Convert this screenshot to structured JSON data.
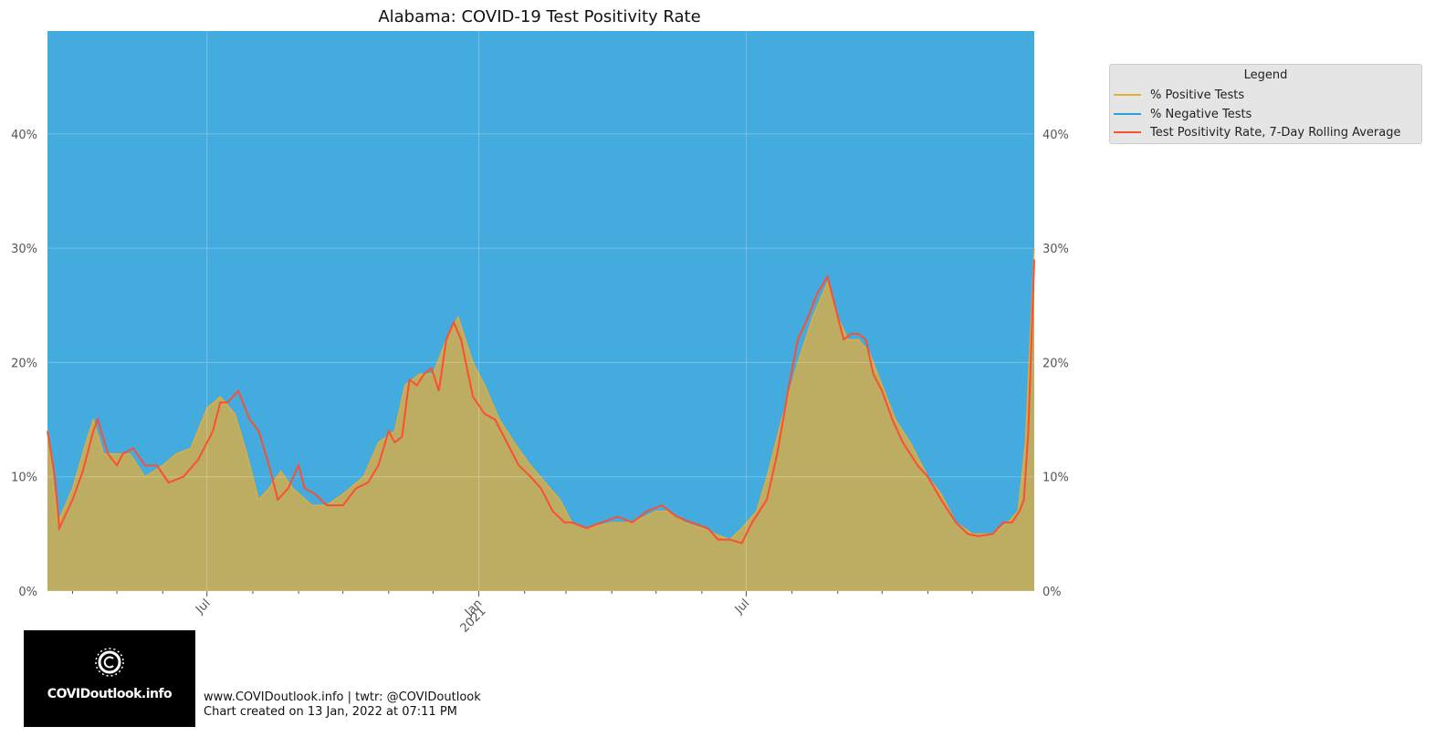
{
  "legend": {
    "title": "Legend",
    "items": [
      {
        "label": "% Positive Tests",
        "color": "#e5ae38"
      },
      {
        "label": "% Negative Tests",
        "color": "#30a2da"
      },
      {
        "label": "Test Positivity Rate, 7-Day Rolling Average",
        "color": "#fc4f30"
      }
    ]
  },
  "footer": {
    "logo_text": "COVIDoutlook.info",
    "line1": "www.COVIDoutlook.info | twtr: @COVIDoutlook",
    "line2": "Chart created on 13 Jan, 2022 at 07:11 PM"
  },
  "chart_data": {
    "type": "area",
    "title": "Alabama: COVID-19 Test Positivity Rate",
    "xlabel": "",
    "ylabel": "",
    "x_range": [
      "2020-03-15",
      "2022-01-12"
    ],
    "ylim": [
      0,
      49
    ],
    "y_ticks": [
      0,
      10,
      20,
      30,
      40
    ],
    "y_tick_labels": [
      "0%",
      "10%",
      "20%",
      "30%",
      "40%"
    ],
    "x_major_ticks": [
      {
        "date": "2020-07-01",
        "label": "Jul"
      },
      {
        "date": "2021-01-01",
        "label": "Jan\n2021"
      },
      {
        "date": "2021-07-01",
        "label": "Jul"
      }
    ],
    "x_minor_ticks": [
      "2020-04-01",
      "2020-05-01",
      "2020-06-01",
      "2020-08-01",
      "2020-09-01",
      "2020-10-01",
      "2020-11-01",
      "2020-12-01",
      "2021-02-01",
      "2021-03-01",
      "2021-04-01",
      "2021-05-01",
      "2021-06-01",
      "2021-08-01",
      "2021-09-01",
      "2021-10-01",
      "2021-11-01",
      "2021-12-01"
    ],
    "grid": true,
    "legend_position": "right",
    "series": [
      {
        "name": "% Positive Tests",
        "color": "#e5ae38",
        "points": [
          [
            "2020-03-15",
            14
          ],
          [
            "2020-03-22",
            6
          ],
          [
            "2020-04-01",
            9
          ],
          [
            "2020-04-10",
            13
          ],
          [
            "2020-04-15",
            15
          ],
          [
            "2020-04-22",
            12
          ],
          [
            "2020-05-01",
            12
          ],
          [
            "2020-05-10",
            12
          ],
          [
            "2020-05-20",
            10
          ],
          [
            "2020-06-01",
            11
          ],
          [
            "2020-06-10",
            12
          ],
          [
            "2020-06-20",
            12.5
          ],
          [
            "2020-07-01",
            16
          ],
          [
            "2020-07-10",
            17
          ],
          [
            "2020-07-20",
            15.5
          ],
          [
            "2020-07-28",
            12
          ],
          [
            "2020-08-05",
            8
          ],
          [
            "2020-08-12",
            9
          ],
          [
            "2020-08-20",
            10.5
          ],
          [
            "2020-08-28",
            9
          ],
          [
            "2020-09-10",
            7.5
          ],
          [
            "2020-09-20",
            7.5
          ],
          [
            "2020-10-01",
            8.5
          ],
          [
            "2020-10-15",
            10
          ],
          [
            "2020-10-25",
            13
          ],
          [
            "2020-11-05",
            14
          ],
          [
            "2020-11-12",
            18
          ],
          [
            "2020-11-22",
            19
          ],
          [
            "2020-12-01",
            19
          ],
          [
            "2020-12-10",
            22
          ],
          [
            "2020-12-18",
            24
          ],
          [
            "2020-12-28",
            20
          ],
          [
            "2021-01-05",
            18
          ],
          [
            "2021-01-15",
            15
          ],
          [
            "2021-01-25",
            13
          ],
          [
            "2021-02-05",
            11
          ],
          [
            "2021-02-15",
            9.5
          ],
          [
            "2021-02-25",
            8
          ],
          [
            "2021-03-05",
            6
          ],
          [
            "2021-03-15",
            5.5
          ],
          [
            "2021-04-01",
            6
          ],
          [
            "2021-04-15",
            6
          ],
          [
            "2021-05-01",
            7
          ],
          [
            "2021-05-10",
            7
          ],
          [
            "2021-05-20",
            6
          ],
          [
            "2021-06-01",
            5.5
          ],
          [
            "2021-06-10",
            5
          ],
          [
            "2021-06-20",
            4.5
          ],
          [
            "2021-06-28",
            5.5
          ],
          [
            "2021-07-08",
            7
          ],
          [
            "2021-07-15",
            10
          ],
          [
            "2021-07-25",
            15
          ],
          [
            "2021-08-05",
            20
          ],
          [
            "2021-08-15",
            24
          ],
          [
            "2021-08-25",
            27
          ],
          [
            "2021-09-01",
            24
          ],
          [
            "2021-09-08",
            22
          ],
          [
            "2021-09-15",
            22
          ],
          [
            "2021-09-22",
            21
          ],
          [
            "2021-10-01",
            18
          ],
          [
            "2021-10-10",
            15
          ],
          [
            "2021-10-20",
            13
          ],
          [
            "2021-11-01",
            10
          ],
          [
            "2021-11-10",
            8.5
          ],
          [
            "2021-11-20",
            6
          ],
          [
            "2021-12-01",
            5
          ],
          [
            "2021-12-15",
            5
          ],
          [
            "2021-12-25",
            6
          ],
          [
            "2022-01-01",
            7
          ],
          [
            "2022-01-06",
            13
          ],
          [
            "2022-01-12",
            30
          ]
        ]
      },
      {
        "name": "% Negative Tests",
        "color": "#30a2da",
        "fill": "remainder to 100%"
      },
      {
        "name": "Test Positivity Rate, 7-Day Rolling Average",
        "color": "#fc4f30",
        "points": [
          [
            "2020-03-15",
            14
          ],
          [
            "2020-03-20",
            10
          ],
          [
            "2020-03-23",
            5.5
          ],
          [
            "2020-04-01",
            8
          ],
          [
            "2020-04-08",
            10.5
          ],
          [
            "2020-04-15",
            14
          ],
          [
            "2020-04-18",
            15
          ],
          [
            "2020-04-25",
            12
          ],
          [
            "2020-05-01",
            11
          ],
          [
            "2020-05-05",
            12
          ],
          [
            "2020-05-12",
            12.5
          ],
          [
            "2020-05-20",
            11
          ],
          [
            "2020-05-28",
            11
          ],
          [
            "2020-06-05",
            9.5
          ],
          [
            "2020-06-15",
            10
          ],
          [
            "2020-06-25",
            11.5
          ],
          [
            "2020-07-01",
            13
          ],
          [
            "2020-07-05",
            14
          ],
          [
            "2020-07-10",
            16.5
          ],
          [
            "2020-07-15",
            16.5
          ],
          [
            "2020-07-22",
            17.5
          ],
          [
            "2020-07-30",
            15
          ],
          [
            "2020-08-05",
            14
          ],
          [
            "2020-08-12",
            11
          ],
          [
            "2020-08-18",
            8
          ],
          [
            "2020-08-25",
            9
          ],
          [
            "2020-09-01",
            11
          ],
          [
            "2020-09-05",
            9
          ],
          [
            "2020-09-12",
            8.5
          ],
          [
            "2020-09-20",
            7.5
          ],
          [
            "2020-10-01",
            7.5
          ],
          [
            "2020-10-10",
            9
          ],
          [
            "2020-10-18",
            9.5
          ],
          [
            "2020-10-25",
            11
          ],
          [
            "2020-11-01",
            14
          ],
          [
            "2020-11-05",
            13
          ],
          [
            "2020-11-10",
            13.5
          ],
          [
            "2020-11-15",
            18.5
          ],
          [
            "2020-11-20",
            18
          ],
          [
            "2020-11-25",
            19
          ],
          [
            "2020-11-30",
            19.5
          ],
          [
            "2020-12-05",
            17.5
          ],
          [
            "2020-12-10",
            22
          ],
          [
            "2020-12-15",
            23.5
          ],
          [
            "2020-12-20",
            22
          ],
          [
            "2020-12-28",
            17
          ],
          [
            "2021-01-05",
            15.5
          ],
          [
            "2021-01-12",
            15
          ],
          [
            "2021-01-20",
            13
          ],
          [
            "2021-01-28",
            11
          ],
          [
            "2021-02-05",
            10
          ],
          [
            "2021-02-12",
            9
          ],
          [
            "2021-02-20",
            7
          ],
          [
            "2021-02-28",
            6
          ],
          [
            "2021-03-05",
            6
          ],
          [
            "2021-03-15",
            5.5
          ],
          [
            "2021-03-25",
            6
          ],
          [
            "2021-04-05",
            6.5
          ],
          [
            "2021-04-15",
            6
          ],
          [
            "2021-04-25",
            7
          ],
          [
            "2021-05-05",
            7.5
          ],
          [
            "2021-05-15",
            6.5
          ],
          [
            "2021-05-25",
            6
          ],
          [
            "2021-06-05",
            5.5
          ],
          [
            "2021-06-12",
            4.5
          ],
          [
            "2021-06-20",
            4.5
          ],
          [
            "2021-06-28",
            4.2
          ],
          [
            "2021-07-05",
            6
          ],
          [
            "2021-07-15",
            8
          ],
          [
            "2021-07-22",
            12
          ],
          [
            "2021-07-30",
            18
          ],
          [
            "2021-08-05",
            22
          ],
          [
            "2021-08-12",
            24
          ],
          [
            "2021-08-18",
            26
          ],
          [
            "2021-08-25",
            27.5
          ],
          [
            "2021-09-01",
            24
          ],
          [
            "2021-09-05",
            22
          ],
          [
            "2021-09-10",
            22.5
          ],
          [
            "2021-09-15",
            22.5
          ],
          [
            "2021-09-20",
            22
          ],
          [
            "2021-09-25",
            19
          ],
          [
            "2021-10-01",
            17.5
          ],
          [
            "2021-10-08",
            15
          ],
          [
            "2021-10-15",
            13
          ],
          [
            "2021-10-25",
            11
          ],
          [
            "2021-11-01",
            10
          ],
          [
            "2021-11-10",
            8
          ],
          [
            "2021-11-20",
            6
          ],
          [
            "2021-11-28",
            5
          ],
          [
            "2021-12-05",
            4.8
          ],
          [
            "2021-12-15",
            5
          ],
          [
            "2021-12-22",
            6
          ],
          [
            "2021-12-28",
            6
          ],
          [
            "2022-01-02",
            7
          ],
          [
            "2022-01-05",
            8
          ],
          [
            "2022-01-08",
            14
          ],
          [
            "2022-01-12",
            29
          ]
        ]
      }
    ]
  }
}
